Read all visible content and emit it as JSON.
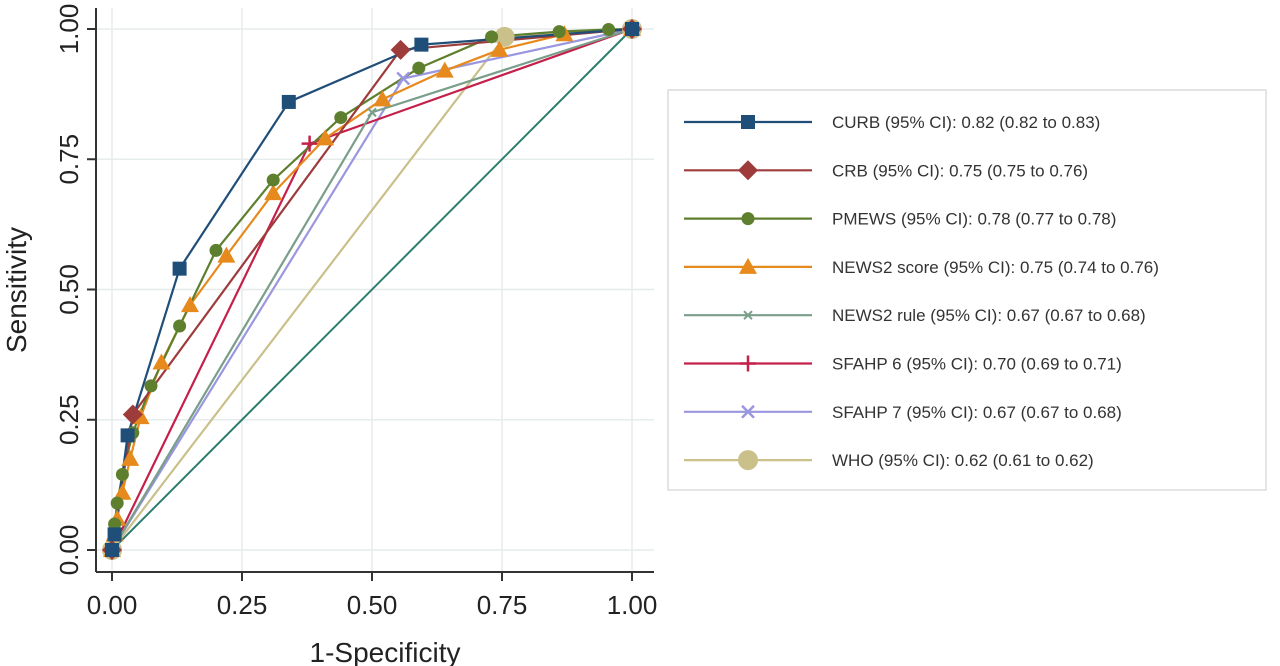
{
  "chart_data": {
    "type": "line",
    "title": "",
    "xlabel": "1-Specificity",
    "ylabel": "Sensitivity",
    "xlim": [
      0,
      1
    ],
    "ylim": [
      0,
      1
    ],
    "xticks": [
      "0.00",
      "0.25",
      "0.50",
      "0.75",
      "1.00"
    ],
    "yticks": [
      "0.00",
      "0.25",
      "0.50",
      "0.75",
      "1.00"
    ],
    "grid": true,
    "legend_position": "right",
    "reference_line": {
      "x": [
        0,
        1
      ],
      "y": [
        0,
        1
      ],
      "color": "#2e7d6e"
    },
    "series": [
      {
        "name": "CURB (95% CI): 0.82 (0.82 to 0.83)",
        "color": "#1f4e79",
        "marker": "square",
        "x": [
          0,
          0.005,
          0.03,
          0.13,
          0.34,
          0.595,
          1.0
        ],
        "y": [
          0,
          0.03,
          0.22,
          0.54,
          0.86,
          0.97,
          1.0
        ]
      },
      {
        "name": "CRB (95% CI): 0.75 (0.75 to 0.76)",
        "color": "#9e3c3c",
        "marker": "diamond",
        "x": [
          0,
          0.04,
          0.555,
          1.0
        ],
        "y": [
          0,
          0.26,
          0.96,
          1.0
        ]
      },
      {
        "name": "PMEWS (95% CI): 0.78  (0.77 to 0.78)",
        "color": "#5e7f2e",
        "marker": "circle",
        "x": [
          0,
          0.005,
          0.01,
          0.02,
          0.04,
          0.075,
          0.13,
          0.2,
          0.31,
          0.44,
          0.59,
          0.73,
          0.86,
          0.955,
          1.0
        ],
        "y": [
          0,
          0.05,
          0.09,
          0.145,
          0.225,
          0.315,
          0.43,
          0.575,
          0.71,
          0.83,
          0.925,
          0.985,
          0.995,
          0.999,
          1.0
        ],
        "marker_every": 1
      },
      {
        "name": "NEWS2 score (95% CI): 0.75  (0.74 to 0.76)",
        "color": "#e68a1e",
        "marker": "triangle",
        "x": [
          0,
          0.005,
          0.01,
          0.02,
          0.035,
          0.055,
          0.095,
          0.15,
          0.22,
          0.31,
          0.41,
          0.52,
          0.64,
          0.745,
          0.87,
          1.0
        ],
        "y": [
          0,
          0.03,
          0.06,
          0.11,
          0.175,
          0.255,
          0.36,
          0.47,
          0.565,
          0.685,
          0.79,
          0.865,
          0.92,
          0.96,
          0.99,
          1.0
        ]
      },
      {
        "name": "NEWS2 rule (95% CI): 0.67  (0.67 to 0.68)",
        "color": "#7a9e8a",
        "marker": "x-small",
        "x": [
          0,
          0.5,
          1.0
        ],
        "y": [
          0,
          0.84,
          1.0
        ]
      },
      {
        "name": "SFAHP 6 (95% CI): 0.70  (0.69 to 0.71)",
        "color": "#c4204a",
        "marker": "plus",
        "x": [
          0,
          0.38,
          1.0
        ],
        "y": [
          0,
          0.78,
          1.0
        ]
      },
      {
        "name": "SFAHP 7 (95% CI): 0.67  (0.67 to 0.68)",
        "color": "#9a96e0",
        "marker": "x",
        "x": [
          0,
          0.56,
          1.0
        ],
        "y": [
          0,
          0.905,
          1.0
        ]
      },
      {
        "name": "WHO (95% CI): 0.62  (0.61 to 0.62)",
        "color": "#c9c08a",
        "marker": "big-circle",
        "x": [
          0,
          0.755,
          1.0
        ],
        "y": [
          0,
          0.985,
          1.0
        ]
      }
    ]
  }
}
